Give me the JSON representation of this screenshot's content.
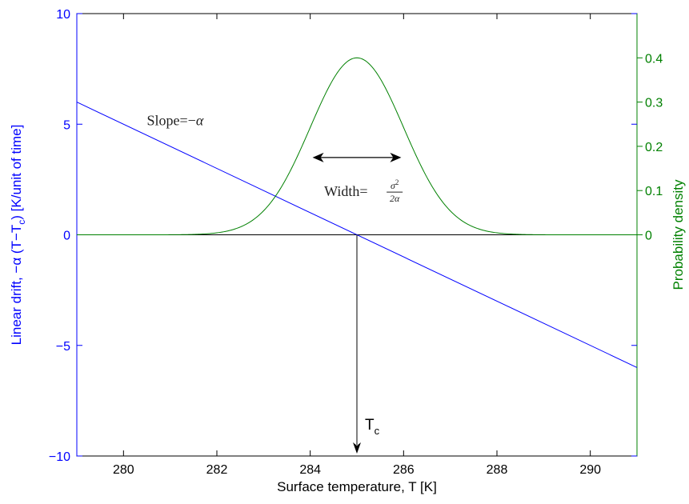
{
  "chart_data": {
    "type": "line",
    "xlabel": "Surface temperature, T [K]",
    "ylabel_left_parts": [
      "Linear drift, −α (T−T",
      "c",
      ") [K/unit of time]"
    ],
    "ylabel_right": "Probability density",
    "xlim": [
      279,
      291
    ],
    "ylim_left": [
      -10,
      10
    ],
    "ylim_right_ticks": [
      0,
      0.1,
      0.2,
      0.3,
      0.4
    ],
    "x_ticks": [
      280,
      282,
      284,
      286,
      288,
      290
    ],
    "y_left_ticks": [
      -10,
      -5,
      0,
      5,
      10
    ],
    "grid": false,
    "colors": {
      "left_axis": "#0000ff",
      "right_axis": "#008000",
      "drift_line": "#0000ff",
      "density_curve": "#008000",
      "axes_box": "#000000",
      "annotations": "#000000"
    },
    "series": [
      {
        "id": "drift",
        "axis": "left",
        "x": [
          279,
          291
        ],
        "y": [
          6,
          -6
        ]
      },
      {
        "id": "density",
        "axis": "right",
        "mean": 285,
        "sd": 1.0,
        "peak": 0.4,
        "x_range": [
          279,
          291
        ]
      }
    ],
    "annotations": {
      "slope_label": "Slope=−",
      "slope_symbol": "α",
      "width_label": "Width=",
      "width_numerator": "σ",
      "width_exponent": "2",
      "width_denominator": "2α",
      "tc_label": "T",
      "tc_sub": "c",
      "tc_x": 285,
      "width_arrow": {
        "x1": 284.05,
        "x2": 285.95,
        "y_density": 0.2
      }
    }
  }
}
